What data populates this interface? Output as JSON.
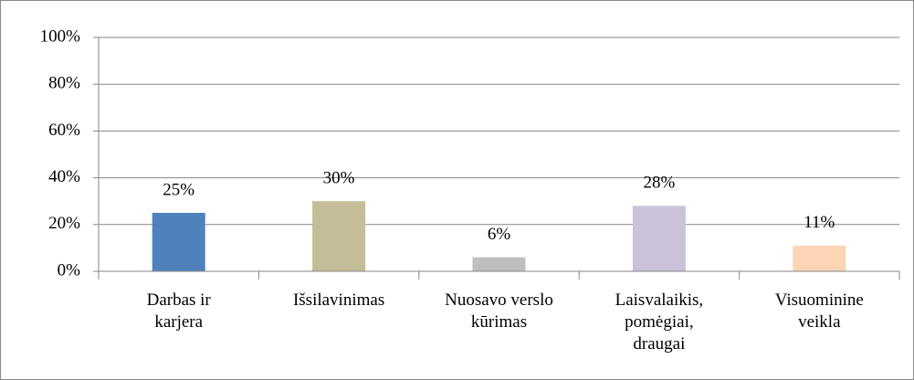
{
  "chart_data": {
    "type": "bar",
    "categories": [
      "Darbas ir karjera",
      "Išsilavinimas",
      "Nuosavo verslo kūrimas",
      "Laisvalaikis, pomėgiai, draugai",
      "Visuominine veikla"
    ],
    "values": [
      25,
      30,
      6,
      28,
      11
    ],
    "value_labels": [
      "25%",
      "30%",
      "6%",
      "28%",
      "11%"
    ],
    "colors": [
      "#4f81bd",
      "#c4bd97",
      "#bfbfbf",
      "#ccc1da",
      "#fcd5b5"
    ],
    "ylim": [
      0,
      100
    ],
    "yticks": [
      {
        "value": 0,
        "label": "0%"
      },
      {
        "value": 20,
        "label": "20%"
      },
      {
        "value": 40,
        "label": "40%"
      },
      {
        "value": 60,
        "label": "60%"
      },
      {
        "value": 80,
        "label": "80%"
      },
      {
        "value": 100,
        "label": "100%"
      }
    ],
    "grid": true
  }
}
